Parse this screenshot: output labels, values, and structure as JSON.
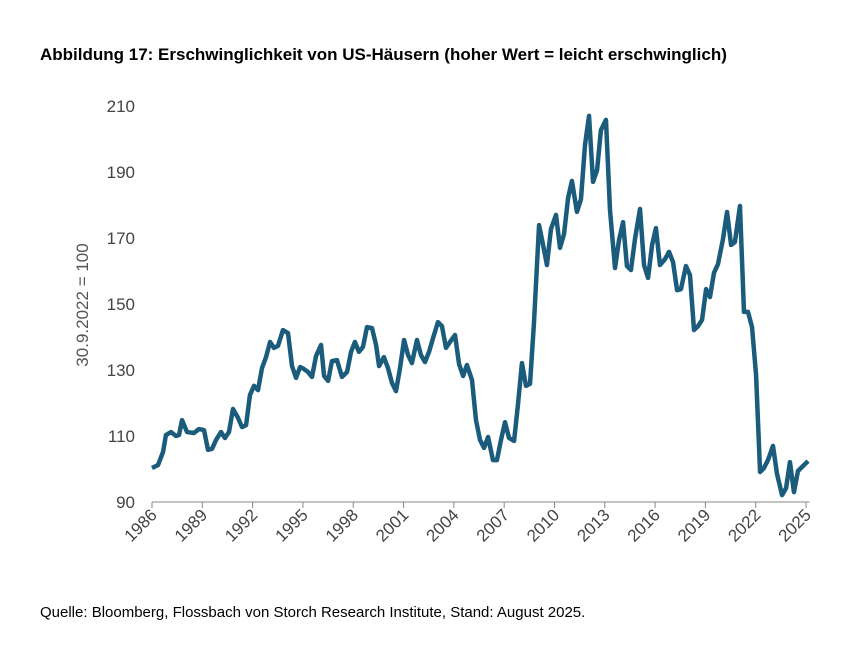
{
  "chart_data": {
    "type": "line",
    "title": "Abbildung 17: Erschwinglichkeit von US-Häusern (hoher Wert = leicht erschwinglich)",
    "y_label": "30.9.2022 = 100",
    "source": "Quelle: Bloomberg, Flossbach von Storch Research Institute, Stand: August 2025.",
    "xlim": [
      1986,
      2025.2
    ],
    "xticks": [
      1986,
      1989,
      1992,
      1995,
      1998,
      2001,
      2004,
      2007,
      2010,
      2013,
      2016,
      2019,
      2022,
      2025
    ],
    "ylim": [
      90,
      210
    ],
    "yticks": [
      90,
      110,
      130,
      150,
      170,
      190,
      210
    ],
    "grid": false,
    "x": [
      1986.0,
      1986.36,
      1986.66,
      1986.83,
      1987.13,
      1987.43,
      1987.61,
      1987.79,
      1988.09,
      1988.5,
      1988.8,
      1989.1,
      1989.34,
      1989.58,
      1989.82,
      1990.11,
      1990.35,
      1990.59,
      1990.83,
      1991.13,
      1991.37,
      1991.61,
      1991.84,
      1992.08,
      1992.32,
      1992.56,
      1992.8,
      1993.04,
      1993.27,
      1993.51,
      1993.81,
      1994.11,
      1994.35,
      1994.59,
      1994.83,
      1995.06,
      1995.3,
      1995.54,
      1995.78,
      1996.08,
      1996.26,
      1996.5,
      1996.73,
      1997.03,
      1997.33,
      1997.63,
      1997.87,
      1998.1,
      1998.34,
      1998.58,
      1998.82,
      1999.12,
      1999.36,
      1999.54,
      1999.83,
      2000.07,
      2000.31,
      2000.55,
      2000.79,
      2001.03,
      2001.27,
      2001.5,
      2001.8,
      2002.04,
      2002.28,
      2002.52,
      2002.76,
      2003.05,
      2003.29,
      2003.53,
      2003.77,
      2004.07,
      2004.31,
      2004.55,
      2004.78,
      2005.08,
      2005.32,
      2005.56,
      2005.8,
      2006.04,
      2006.33,
      2006.57,
      2006.81,
      2007.05,
      2007.29,
      2007.59,
      2007.82,
      2008.06,
      2008.3,
      2008.54,
      2008.78,
      2009.08,
      2009.32,
      2009.55,
      2009.79,
      2010.09,
      2010.33,
      2010.57,
      2010.81,
      2011.04,
      2011.34,
      2011.58,
      2011.82,
      2012.06,
      2012.3,
      2012.54,
      2012.77,
      2013.07,
      2013.31,
      2013.61,
      2013.85,
      2014.09,
      2014.32,
      2014.56,
      2014.8,
      2015.1,
      2015.34,
      2015.58,
      2015.82,
      2016.05,
      2016.29,
      2016.59,
      2016.83,
      2017.07,
      2017.31,
      2017.54,
      2017.84,
      2018.08,
      2018.32,
      2018.56,
      2018.8,
      2019.04,
      2019.27,
      2019.51,
      2019.75,
      2020.05,
      2020.29,
      2020.53,
      2020.76,
      2021.06,
      2021.3,
      2021.54,
      2021.78,
      2022.02,
      2022.26,
      2022.49,
      2022.73,
      2023.03,
      2023.27,
      2023.57,
      2023.81,
      2024.04,
      2024.28,
      2024.52,
      2024.82,
      2025.12
    ],
    "series": [
      {
        "color": "#1b5c7c",
        "values": [
          100.3,
          101.2,
          105.2,
          110.3,
          111.2,
          110.0,
          110.3,
          114.8,
          111.2,
          110.9,
          112.1,
          111.8,
          105.8,
          106.1,
          108.8,
          111.2,
          109.4,
          111.2,
          118.2,
          115.5,
          112.7,
          113.3,
          122.4,
          125.2,
          123.9,
          130.6,
          133.9,
          138.5,
          136.7,
          137.3,
          142.1,
          141.2,
          131.2,
          127.6,
          130.9,
          130.3,
          129.4,
          127.9,
          134.2,
          137.6,
          128.2,
          126.7,
          132.7,
          133.0,
          127.9,
          129.4,
          135.5,
          138.5,
          135.5,
          137.0,
          143.0,
          142.7,
          137.6,
          131.2,
          133.9,
          130.6,
          126.1,
          123.6,
          130.6,
          139.1,
          134.5,
          132.1,
          139.1,
          134.5,
          132.4,
          135.5,
          139.7,
          144.5,
          143.3,
          136.7,
          138.5,
          140.6,
          131.8,
          128.2,
          131.5,
          127.0,
          114.8,
          108.8,
          106.4,
          109.7,
          102.7,
          102.7,
          108.8,
          114.2,
          109.4,
          108.5,
          119.4,
          132.1,
          125.2,
          125.8,
          144.5,
          173.9,
          167.9,
          161.8,
          172.7,
          177.0,
          167.0,
          171.2,
          182.1,
          187.3,
          177.9,
          181.8,
          198.2,
          207.0,
          187.0,
          190.6,
          202.7,
          205.8,
          178.5,
          160.9,
          169.4,
          174.8,
          161.5,
          160.3,
          169.7,
          178.8,
          161.8,
          157.9,
          167.9,
          173.0,
          161.8,
          163.6,
          165.8,
          162.7,
          154.2,
          154.5,
          161.5,
          158.8,
          142.1,
          143.3,
          145.2,
          154.5,
          152.1,
          159.4,
          162.1,
          169.7,
          177.9,
          167.9,
          168.8,
          179.7,
          147.6,
          147.6,
          143.0,
          128.5,
          99.1,
          100.3,
          102.7,
          107.0,
          98.5,
          92.1,
          94.2,
          102.1,
          93.0,
          99.4,
          100.9,
          102.4
        ]
      }
    ]
  }
}
